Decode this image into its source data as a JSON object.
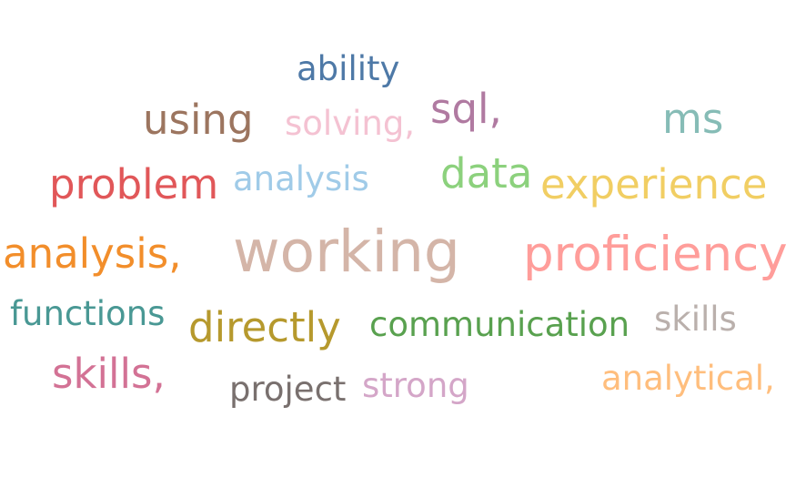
{
  "words": [
    {
      "text": "ability",
      "color": "#4e79a7"
    },
    {
      "text": "using",
      "color": "#9c755f"
    },
    {
      "text": "solving,",
      "color": "#f4c2d2"
    },
    {
      "text": "sql,",
      "color": "#b07aa1"
    },
    {
      "text": "ms",
      "color": "#86bcb6"
    },
    {
      "text": "problem",
      "color": "#e15759"
    },
    {
      "text": "analysis",
      "color": "#a0cbe8"
    },
    {
      "text": "data",
      "color": "#8cd17d"
    },
    {
      "text": "experience",
      "color": "#f1ce63"
    },
    {
      "text": "analysis,",
      "color": "#f28e2b"
    },
    {
      "text": "working",
      "color": "#d4b5a8"
    },
    {
      "text": "proficiency",
      "color": "#ff9d9a"
    },
    {
      "text": "functions",
      "color": "#499894"
    },
    {
      "text": "directly",
      "color": "#b6992d"
    },
    {
      "text": "communication",
      "color": "#59a14f"
    },
    {
      "text": "skills",
      "color": "#bab0ac"
    },
    {
      "text": "skills,",
      "color": "#d37295"
    },
    {
      "text": "project",
      "color": "#79706e"
    },
    {
      "text": "strong",
      "color": "#d4a6c8"
    },
    {
      "text": "analytical,",
      "color": "#ffbe7d"
    }
  ]
}
